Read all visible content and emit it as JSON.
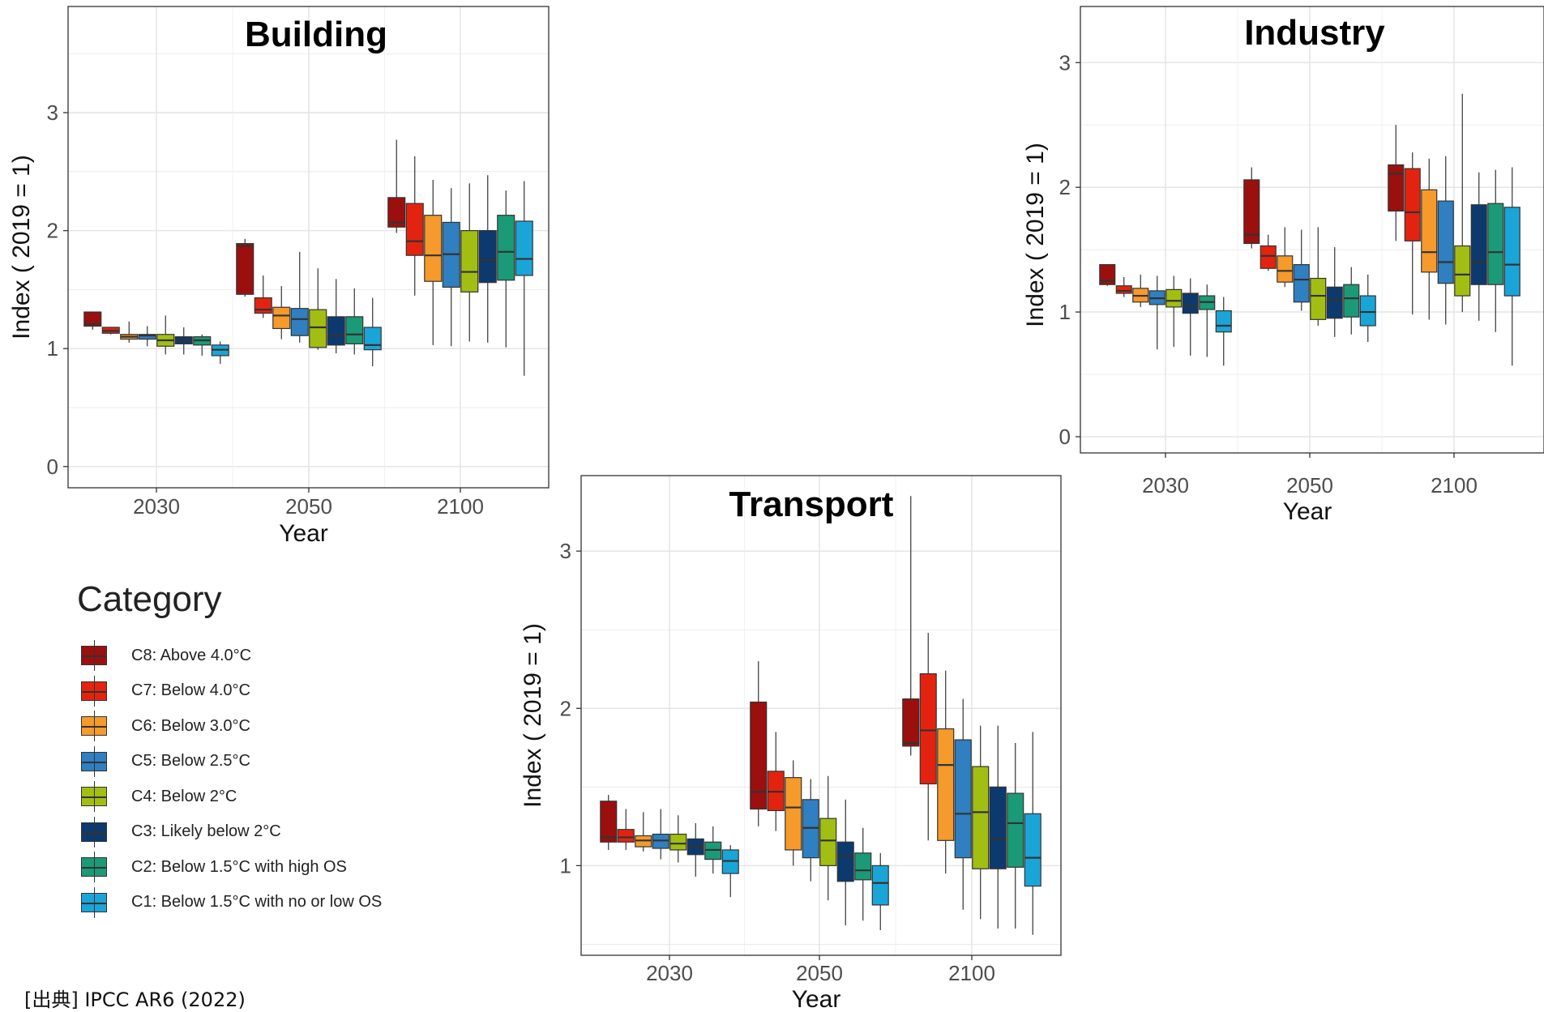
{
  "legend": {
    "title": "Category",
    "items": [
      {
        "label": "C8: Above 4.0°C",
        "color": "#9c0f0f"
      },
      {
        "label": "C7: Below 4.0°C",
        "color": "#e3230f"
      },
      {
        "label": "C6: Below 3.0°C",
        "color": "#f59a2b"
      },
      {
        "label": "C5: Below 2.5°C",
        "color": "#2f7fc1"
      },
      {
        "label": "C4: Below 2°C",
        "color": "#a3be12"
      },
      {
        "label": "C3: Likely below 2°C",
        "color": "#0c3a6e"
      },
      {
        "label": "C2: Below 1.5°C with high OS",
        "color": "#1a9a76"
      },
      {
        "label": "C1: Below 1.5°C with no or low OS",
        "color": "#1aa5d8"
      }
    ]
  },
  "source": "[出典] IPCC AR6 (2022)",
  "chart_data": [
    {
      "type": "box",
      "title": "Building",
      "xlabel": "Year",
      "ylabel": "Index ( 2019  = 1)",
      "categories": [
        "2030",
        "2050",
        "2100"
      ],
      "ylim": [
        -0.18,
        3.9
      ],
      "yticks": [
        0,
        1,
        2,
        3
      ],
      "series": [
        {
          "name": "C8: Above 4.0°C",
          "boxes": [
            [
              1.16,
              1.19,
              1.21,
              1.31,
              1.31
            ],
            [
              1.44,
              1.46,
              1.87,
              1.89,
              1.93
            ],
            [
              1.98,
              2.03,
              2.07,
              2.28,
              2.77
            ]
          ]
        },
        {
          "name": "C7: Below 4.0°C",
          "boxes": [
            [
              1.12,
              1.13,
              1.15,
              1.18,
              1.18
            ],
            [
              1.26,
              1.3,
              1.33,
              1.43,
              1.62
            ],
            [
              1.45,
              1.79,
              1.91,
              2.23,
              2.63
            ]
          ]
        },
        {
          "name": "C6: Below 3.0°C",
          "boxes": [
            [
              1.05,
              1.08,
              1.1,
              1.12,
              1.23
            ],
            [
              1.08,
              1.17,
              1.28,
              1.35,
              1.53
            ],
            [
              1.03,
              1.57,
              1.79,
              2.13,
              2.43
            ]
          ]
        },
        {
          "name": "C5: Below 2.5°C",
          "boxes": [
            [
              1.02,
              1.08,
              1.11,
              1.12,
              1.19
            ],
            [
              1.05,
              1.11,
              1.25,
              1.34,
              1.82
            ],
            [
              1.02,
              1.52,
              1.8,
              2.07,
              2.36
            ]
          ]
        },
        {
          "name": "C4: Below 2°C",
          "boxes": [
            [
              0.95,
              1.02,
              1.07,
              1.12,
              1.28
            ],
            [
              0.99,
              1.01,
              1.18,
              1.33,
              1.68
            ],
            [
              1.06,
              1.48,
              1.65,
              2.0,
              2.4
            ]
          ]
        },
        {
          "name": "C3: Likely below 2°C",
          "boxes": [
            [
              0.95,
              1.04,
              1.07,
              1.1,
              1.18
            ],
            [
              0.96,
              1.03,
              1.11,
              1.27,
              1.59
            ],
            [
              1.05,
              1.56,
              1.75,
              2.0,
              2.47
            ]
          ]
        },
        {
          "name": "C2: Below 1.5°C with high OS",
          "boxes": [
            [
              0.94,
              1.03,
              1.07,
              1.1,
              1.12
            ],
            [
              0.95,
              1.04,
              1.12,
              1.27,
              1.51
            ],
            [
              1.01,
              1.58,
              1.82,
              2.13,
              2.34
            ]
          ]
        },
        {
          "name": "C1: Below 1.5°C with no or low OS",
          "boxes": [
            [
              0.87,
              0.94,
              0.99,
              1.03,
              1.06
            ],
            [
              0.85,
              0.99,
              1.03,
              1.18,
              1.43
            ],
            [
              0.77,
              1.62,
              1.76,
              2.08,
              2.42
            ]
          ]
        }
      ]
    },
    {
      "type": "box",
      "title": "Industry",
      "xlabel": "Year",
      "ylabel": "Index ( 2019  = 1)",
      "categories": [
        "2030",
        "2050",
        "2100"
      ],
      "ylim": [
        -0.13,
        3.45
      ],
      "yticks": [
        0,
        1,
        2,
        3
      ],
      "series": [
        {
          "name": "C8: Above 4.0°C",
          "boxes": [
            [
              1.21,
              1.22,
              1.25,
              1.38,
              1.38
            ],
            [
              1.51,
              1.55,
              1.62,
              2.06,
              2.16
            ],
            [
              1.57,
              1.81,
              2.11,
              2.18,
              2.5
            ]
          ]
        },
        {
          "name": "C7: Below 4.0°C",
          "boxes": [
            [
              1.12,
              1.15,
              1.17,
              1.21,
              1.28
            ],
            [
              1.33,
              1.35,
              1.45,
              1.53,
              1.62
            ],
            [
              0.98,
              1.57,
              1.8,
              2.15,
              2.28
            ]
          ]
        },
        {
          "name": "C6: Below 3.0°C",
          "boxes": [
            [
              1.04,
              1.08,
              1.13,
              1.19,
              1.3
            ],
            [
              1.2,
              1.24,
              1.33,
              1.45,
              1.68
            ],
            [
              0.94,
              1.32,
              1.48,
              1.98,
              2.23
            ]
          ]
        },
        {
          "name": "C5: Below 2.5°C",
          "boxes": [
            [
              0.7,
              1.06,
              1.11,
              1.17,
              1.29
            ],
            [
              1.01,
              1.08,
              1.26,
              1.38,
              1.66
            ],
            [
              0.9,
              1.23,
              1.4,
              1.89,
              2.25
            ]
          ]
        },
        {
          "name": "C4: Below 2°C",
          "boxes": [
            [
              0.72,
              1.04,
              1.09,
              1.18,
              1.29
            ],
            [
              0.89,
              0.94,
              1.13,
              1.27,
              1.68
            ],
            [
              1.0,
              1.13,
              1.3,
              1.53,
              2.75
            ]
          ]
        },
        {
          "name": "C3: Likely below 2°C",
          "boxes": [
            [
              0.65,
              0.99,
              1.05,
              1.15,
              1.27
            ],
            [
              0.8,
              0.95,
              1.1,
              1.2,
              1.52
            ],
            [
              0.93,
              1.22,
              1.4,
              1.86,
              2.12
            ]
          ]
        },
        {
          "name": "C2: Below 1.5°C with high OS",
          "boxes": [
            [
              0.64,
              1.02,
              1.08,
              1.13,
              1.22
            ],
            [
              0.82,
              0.96,
              1.11,
              1.22,
              1.36
            ],
            [
              0.84,
              1.22,
              1.48,
              1.87,
              2.14
            ]
          ]
        },
        {
          "name": "C1: Below 1.5°C with no or low OS",
          "boxes": [
            [
              0.57,
              0.84,
              0.89,
              1.01,
              1.12
            ],
            [
              0.76,
              0.89,
              1.0,
              1.13,
              1.3
            ],
            [
              0.57,
              1.13,
              1.38,
              1.84,
              2.16
            ]
          ]
        }
      ]
    },
    {
      "type": "box",
      "title": "Transport",
      "xlabel": "Year",
      "ylabel": "Index ( 2019  = 1)",
      "categories": [
        "2030",
        "2050",
        "2100"
      ],
      "ylim": [
        0.43,
        3.48
      ],
      "yticks": [
        1,
        2,
        3
      ],
      "series": [
        {
          "name": "C8: Above 4.0°C",
          "boxes": [
            [
              1.1,
              1.15,
              1.18,
              1.41,
              1.45
            ],
            [
              1.25,
              1.36,
              1.47,
              2.04,
              2.3
            ],
            [
              1.7,
              1.76,
              1.78,
              2.06,
              3.35
            ]
          ]
        },
        {
          "name": "C7: Below 4.0°C",
          "boxes": [
            [
              1.1,
              1.15,
              1.18,
              1.23,
              1.36
            ],
            [
              1.22,
              1.35,
              1.47,
              1.6,
              1.85
            ],
            [
              1.16,
              1.52,
              1.86,
              2.22,
              2.48
            ]
          ]
        },
        {
          "name": "C6: Below 3.0°C",
          "boxes": [
            [
              1.09,
              1.12,
              1.16,
              1.19,
              1.34
            ],
            [
              1.0,
              1.1,
              1.37,
              1.56,
              1.67
            ],
            [
              0.95,
              1.16,
              1.64,
              1.87,
              2.24
            ]
          ]
        },
        {
          "name": "C5: Below 2.5°C",
          "boxes": [
            [
              1.04,
              1.11,
              1.16,
              1.2,
              1.36
            ],
            [
              0.9,
              1.05,
              1.24,
              1.42,
              1.55
            ],
            [
              0.72,
              1.05,
              1.33,
              1.8,
              2.06
            ]
          ]
        },
        {
          "name": "C4: Below 2°C",
          "boxes": [
            [
              1.02,
              1.1,
              1.14,
              1.2,
              1.32
            ],
            [
              0.78,
              1.0,
              1.16,
              1.3,
              1.57
            ],
            [
              0.66,
              0.98,
              1.34,
              1.63,
              1.89
            ]
          ]
        },
        {
          "name": "C3: Likely below 2°C",
          "boxes": [
            [
              0.93,
              1.07,
              1.12,
              1.17,
              1.27
            ],
            [
              0.62,
              0.9,
              1.06,
              1.15,
              1.42
            ],
            [
              0.6,
              0.98,
              1.17,
              1.5,
              1.89
            ]
          ]
        },
        {
          "name": "C2: Below 1.5°C with high OS",
          "boxes": [
            [
              0.95,
              1.04,
              1.1,
              1.15,
              1.25
            ],
            [
              0.65,
              0.91,
              0.97,
              1.08,
              1.24
            ],
            [
              0.6,
              0.99,
              1.27,
              1.46,
              1.78
            ]
          ]
        },
        {
          "name": "C1: Below 1.5°C with no or low OS",
          "boxes": [
            [
              0.8,
              0.95,
              1.03,
              1.1,
              1.13
            ],
            [
              0.59,
              0.75,
              0.89,
              1.0,
              1.08
            ],
            [
              0.56,
              0.87,
              1.05,
              1.33,
              1.85
            ]
          ]
        }
      ]
    }
  ]
}
